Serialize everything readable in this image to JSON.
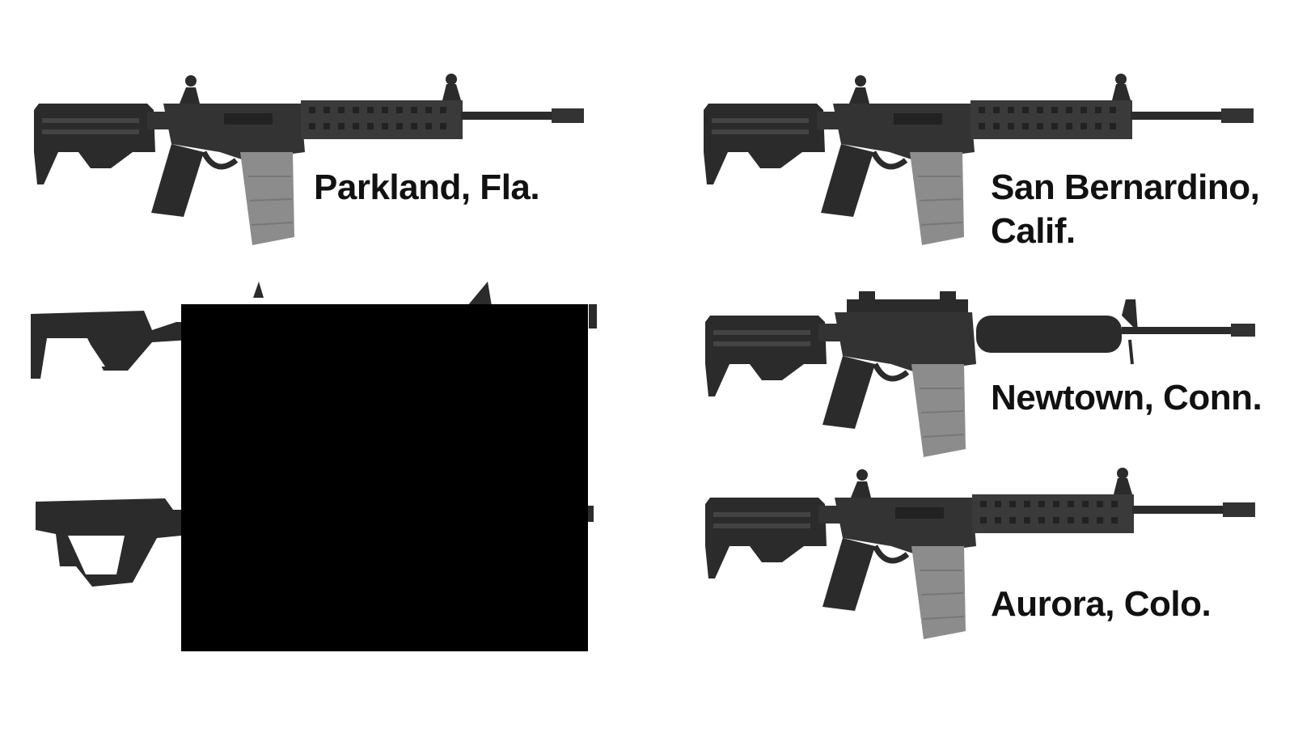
{
  "colors": {
    "rifle_dark": "#2b2b2b",
    "rifle_mid": "#3d3d3d",
    "magazine_gray": "#8c8c8c",
    "text": "#111111",
    "redaction": "#000000"
  },
  "labels": {
    "parkland": "Parkland, Fla.",
    "san_bernardino_line1": "San Bernardino,",
    "san_bernardino_line2": "Calif.",
    "newtown": "Newtown, Conn.",
    "aurora": "Aurora, Colo."
  },
  "images": [
    {
      "name": "rifle-parkland",
      "description": "AR-15 style rifle with quad rail handguard and gray magazine"
    },
    {
      "name": "rifle-san-bernardino",
      "description": "AR-15 style rifle with quad rail handguard and gray magazine"
    },
    {
      "name": "rifle-newtown",
      "description": "AR-15 style rifle with round handguard and gray magazine"
    },
    {
      "name": "rifle-aurora",
      "description": "AR-15 style rifle with quad rail handguard and gray magazine"
    },
    {
      "name": "rifle-partial-1",
      "description": "rifle partly covered by black box"
    },
    {
      "name": "rifle-partial-2",
      "description": "rifle partly covered by black box"
    }
  ]
}
